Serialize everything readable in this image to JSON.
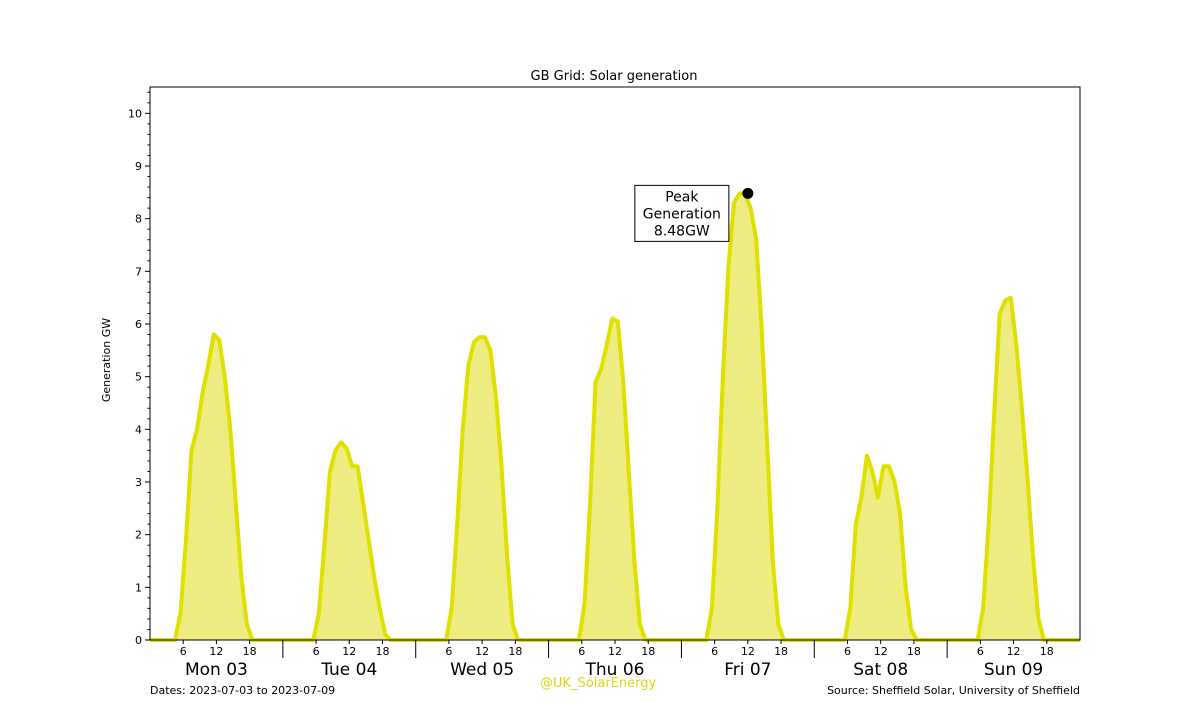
{
  "chart_data": {
    "type": "area",
    "title": "GB Grid: Solar generation",
    "ylabel": "Generation GW",
    "xlabel": "",
    "ylim": [
      0,
      10.5
    ],
    "yticks": [
      0,
      1,
      2,
      3,
      4,
      5,
      6,
      7,
      8,
      9,
      10
    ],
    "hour_ticks": [
      "6",
      "12",
      "18"
    ],
    "days": [
      "Mon 03",
      "Tue 04",
      "Wed 05",
      "Thu 06",
      "Fri 07",
      "Sat 08",
      "Sun 09"
    ],
    "grid": false,
    "line_color": "#e0e000",
    "fill_color": "#eeec80",
    "series": [
      {
        "values_by_day_hour": [
          [
            [
              0,
              0
            ],
            [
              4.5,
              0
            ],
            [
              5.5,
              0.5
            ],
            [
              6.5,
              1.9
            ],
            [
              7.5,
              3.6
            ],
            [
              8.5,
              4.0
            ],
            [
              9.5,
              4.7
            ],
            [
              10.5,
              5.2
            ],
            [
              11.5,
              5.8
            ],
            [
              12.5,
              5.7
            ],
            [
              13.5,
              5.0
            ],
            [
              14.5,
              4.0
            ],
            [
              15.5,
              2.6
            ],
            [
              16.5,
              1.2
            ],
            [
              17.5,
              0.3
            ],
            [
              18.5,
              0
            ],
            [
              24,
              0
            ]
          ],
          [
            [
              0,
              0
            ],
            [
              5.5,
              0
            ],
            [
              6.5,
              0.5
            ],
            [
              7.5,
              1.8
            ],
            [
              8.5,
              3.2
            ],
            [
              9.5,
              3.6
            ],
            [
              10.5,
              3.75
            ],
            [
              11.5,
              3.65
            ],
            [
              12.5,
              3.3
            ],
            [
              13.5,
              3.3
            ],
            [
              14.5,
              2.6
            ],
            [
              15.5,
              1.9
            ],
            [
              16.5,
              1.2
            ],
            [
              17.5,
              0.6
            ],
            [
              18.5,
              0.1
            ],
            [
              19.5,
              0
            ],
            [
              24,
              0
            ]
          ],
          [
            [
              0,
              0
            ],
            [
              5.5,
              0
            ],
            [
              6.5,
              0.6
            ],
            [
              7.5,
              2.2
            ],
            [
              8.5,
              4.0
            ],
            [
              9.5,
              5.2
            ],
            [
              10.5,
              5.65
            ],
            [
              11.5,
              5.75
            ],
            [
              12.5,
              5.75
            ],
            [
              13.5,
              5.5
            ],
            [
              14.5,
              4.6
            ],
            [
              15.5,
              3.3
            ],
            [
              16.5,
              1.6
            ],
            [
              17.5,
              0.3
            ],
            [
              18.5,
              0
            ],
            [
              24,
              0
            ]
          ],
          [
            [
              0,
              0
            ],
            [
              5.5,
              0
            ],
            [
              6.5,
              0.7
            ],
            [
              7.5,
              2.6
            ],
            [
              8.5,
              4.9
            ],
            [
              9.5,
              5.15
            ],
            [
              10.5,
              5.6
            ],
            [
              11.5,
              6.1
            ],
            [
              12.5,
              6.05
            ],
            [
              13.5,
              4.9
            ],
            [
              14.5,
              3.2
            ],
            [
              15.5,
              1.5
            ],
            [
              16.5,
              0.3
            ],
            [
              17.5,
              0
            ],
            [
              24,
              0
            ]
          ],
          [
            [
              0,
              0
            ],
            [
              4.5,
              0
            ],
            [
              5.5,
              0.6
            ],
            [
              6.5,
              2.5
            ],
            [
              7.5,
              5.0
            ],
            [
              8.5,
              7.1
            ],
            [
              9.5,
              8.3
            ],
            [
              10.5,
              8.48
            ],
            [
              11.5,
              8.48
            ],
            [
              12.5,
              8.2
            ],
            [
              13.5,
              7.6
            ],
            [
              14.5,
              5.9
            ],
            [
              15.5,
              3.7
            ],
            [
              16.5,
              1.5
            ],
            [
              17.5,
              0.3
            ],
            [
              18.5,
              0
            ],
            [
              24,
              0
            ]
          ],
          [
            [
              0,
              0
            ],
            [
              5.5,
              0
            ],
            [
              6.5,
              0.6
            ],
            [
              7.5,
              2.2
            ],
            [
              8.5,
              2.7
            ],
            [
              9.5,
              3.5
            ],
            [
              10.5,
              3.2
            ],
            [
              11.5,
              2.7
            ],
            [
              12.5,
              3.3
            ],
            [
              13.5,
              3.3
            ],
            [
              14.5,
              3.0
            ],
            [
              15.5,
              2.4
            ],
            [
              16.5,
              1.0
            ],
            [
              17.5,
              0.2
            ],
            [
              18.5,
              0
            ],
            [
              24,
              0
            ]
          ],
          [
            [
              0,
              0
            ],
            [
              5.5,
              0
            ],
            [
              6.5,
              0.6
            ],
            [
              7.5,
              2.2
            ],
            [
              8.5,
              4.3
            ],
            [
              9.5,
              6.2
            ],
            [
              10.5,
              6.45
            ],
            [
              11.5,
              6.5
            ],
            [
              12.5,
              5.6
            ],
            [
              13.5,
              4.4
            ],
            [
              14.5,
              3.1
            ],
            [
              15.5,
              1.6
            ],
            [
              16.5,
              0.4
            ],
            [
              17.5,
              0
            ],
            [
              24,
              0
            ]
          ]
        ]
      }
    ],
    "annotation": {
      "lines": [
        "Peak",
        "Generation",
        "8.48GW"
      ],
      "day_index": 4,
      "hour": 12,
      "value": 8.48
    }
  },
  "footer": {
    "dates": "Dates: 2023-07-03 to 2023-07-09",
    "handle": "@UK_SolarEnergy",
    "source": "Source: Sheffield Solar, University of Sheffield"
  }
}
